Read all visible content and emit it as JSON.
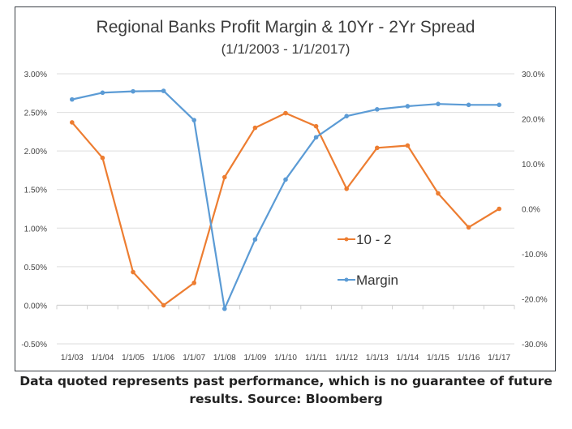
{
  "chart_data": {
    "type": "line",
    "title": "Regional Banks Profit Margin & 10Yr - 2Yr Spread",
    "subtitle": "(1/1/2003  -  1/1/2017)",
    "categories": [
      "1/1/03",
      "1/1/04",
      "1/1/05",
      "1/1/06",
      "1/1/07",
      "1/1/08",
      "1/1/09",
      "1/1/10",
      "1/1/11",
      "1/1/12",
      "1/1/13",
      "1/1/14",
      "1/1/15",
      "1/1/16",
      "1/1/17"
    ],
    "y_left": {
      "ylim": [
        -0.5,
        3.0
      ],
      "ticks": [
        "-0.50%",
        "0.00%",
        "0.50%",
        "1.00%",
        "1.50%",
        "2.00%",
        "2.50%",
        "3.00%"
      ],
      "unit": "%"
    },
    "y_right": {
      "ylim": [
        -30,
        30
      ],
      "ticks": [
        "-30.0%",
        "-20.0%",
        "-10.0%",
        "0.0%",
        "10.0%",
        "20.0%",
        "30.0%"
      ],
      "unit": "%"
    },
    "grid": true,
    "legend": "center-right inside plot",
    "series": [
      {
        "name": "10  -  2",
        "axis": "left",
        "color": "#ed7d31",
        "values": [
          2.37,
          1.91,
          0.43,
          0.0,
          0.29,
          1.66,
          2.3,
          2.49,
          2.32,
          1.51,
          2.04,
          2.07,
          1.45,
          1.01,
          1.25
        ]
      },
      {
        "name": "Margin",
        "axis": "right",
        "color": "#5b9bd5",
        "values": [
          24.3,
          25.8,
          26.1,
          26.2,
          19.7,
          -22.2,
          -6.8,
          6.5,
          15.9,
          20.6,
          22.1,
          22.8,
          23.3,
          23.1,
          23.1
        ]
      }
    ]
  },
  "footer": "Data quoted represents past performance, which is no guarantee of future results. Source: Bloomberg"
}
